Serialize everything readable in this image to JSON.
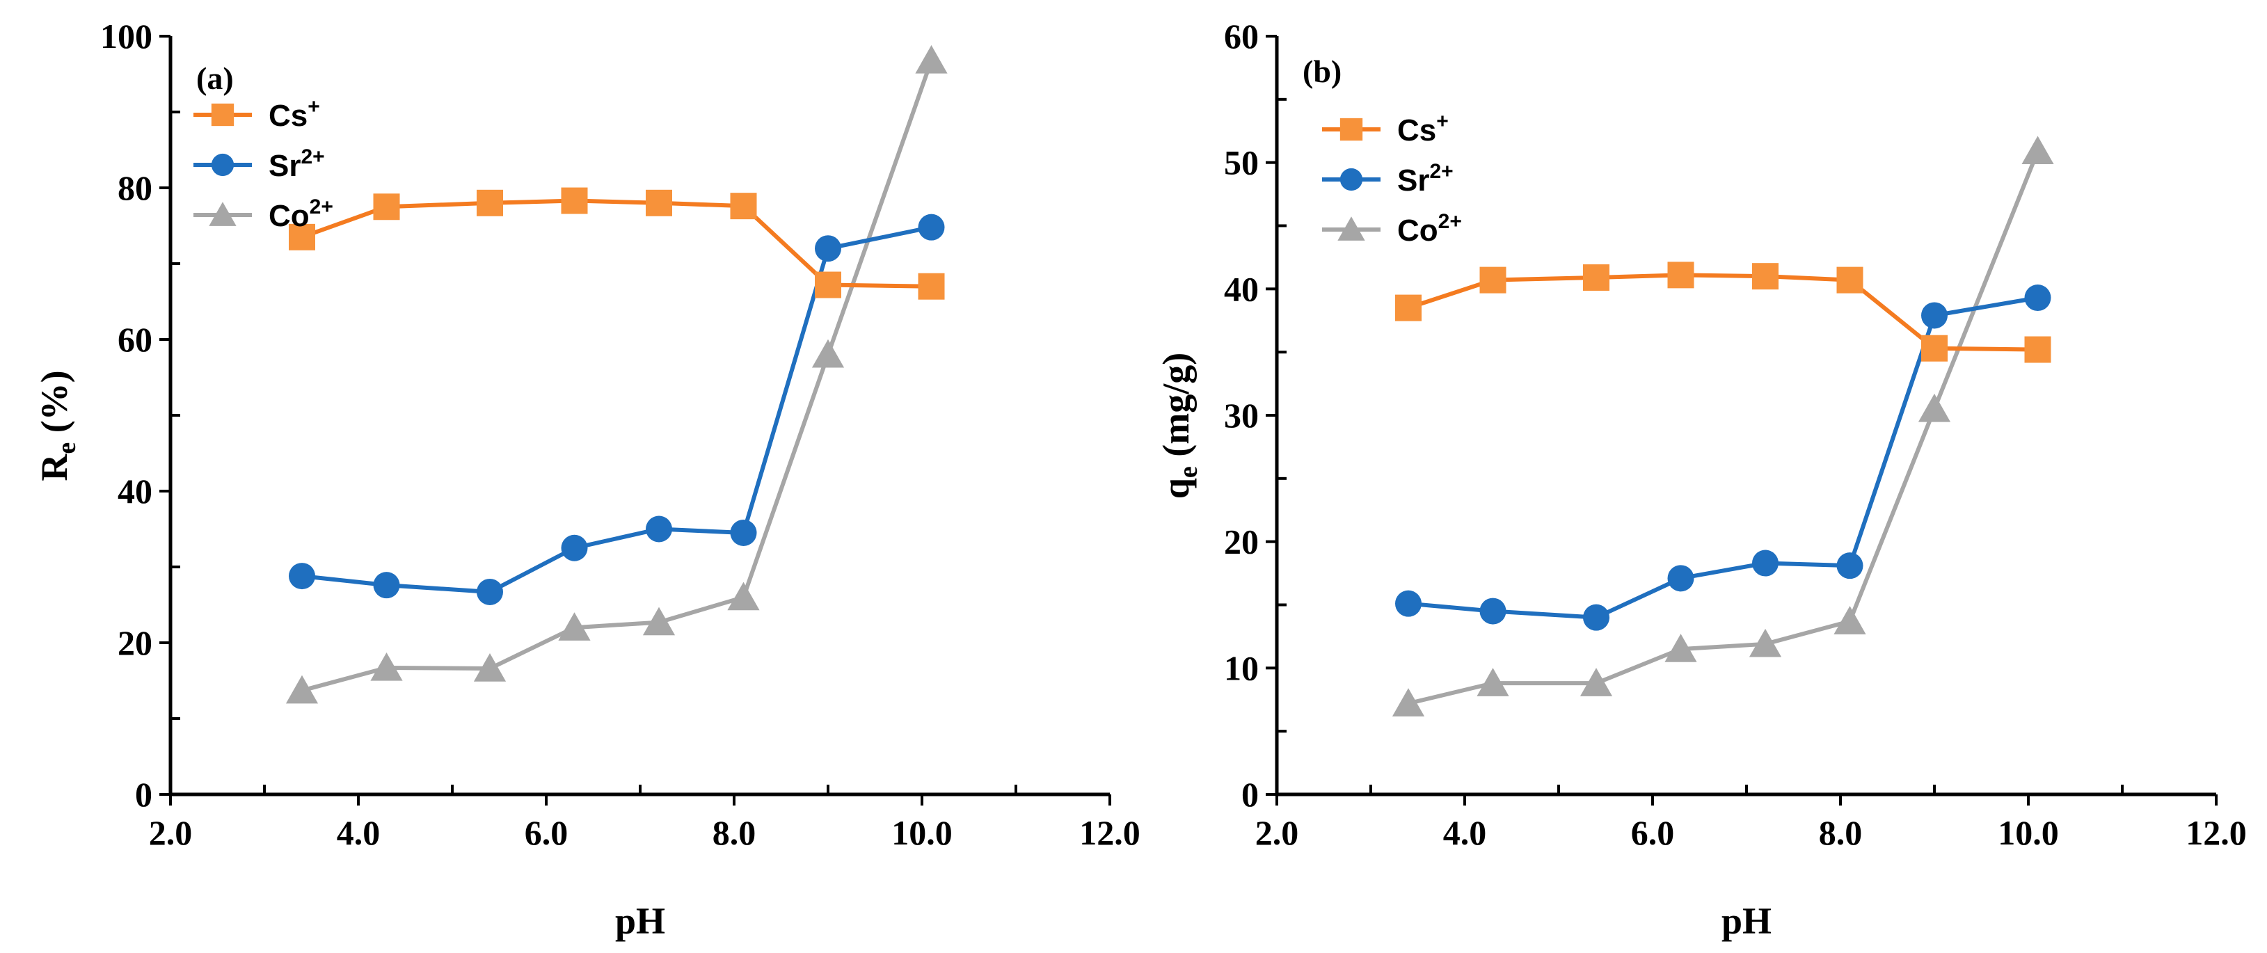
{
  "chart_data": [
    {
      "type": "line",
      "panel_label": "(a)",
      "ylabel": {
        "main": "R",
        "sub": "e",
        "rest": " (%)"
      },
      "xlabel": "pH",
      "xlim": [
        2.0,
        12.0
      ],
      "ylim": [
        0,
        100
      ],
      "xticks": [
        "2.0",
        "4.0",
        "6.0",
        "8.0",
        "10.0",
        "12.0"
      ],
      "yticks": [
        "0",
        "20",
        "40",
        "60",
        "80",
        "100"
      ],
      "legend_position": "top-left",
      "series": [
        {
          "name": "Cs",
          "sup": "+",
          "color": "#F47B20",
          "marker_fill": "#F7923A",
          "marker": "square",
          "x": [
            3.4,
            4.3,
            5.4,
            6.3,
            7.2,
            8.1,
            9.0,
            10.1
          ],
          "y": [
            73.5,
            77.5,
            78.0,
            78.3,
            78.0,
            77.6,
            67.2,
            67.0
          ]
        },
        {
          "name": "Sr",
          "sup": "2+",
          "color": "#1F6FBF",
          "marker_fill": "#1F6FBF",
          "marker": "circle",
          "x": [
            3.4,
            4.3,
            5.4,
            6.3,
            7.2,
            8.1,
            9.0,
            10.1
          ],
          "y": [
            28.8,
            27.6,
            26.7,
            32.5,
            35.0,
            34.5,
            72.0,
            74.8
          ]
        },
        {
          "name": "Co",
          "sup": "2+",
          "color": "#A6A6A6",
          "marker_fill": "#A6A6A6",
          "marker": "triangle",
          "x": [
            3.4,
            4.3,
            5.4,
            6.3,
            7.2,
            8.1,
            9.0,
            10.1
          ],
          "y": [
            13.7,
            16.7,
            16.6,
            22.0,
            22.7,
            26.0,
            58.0,
            96.8
          ]
        }
      ]
    },
    {
      "type": "line",
      "panel_label": "(b)",
      "ylabel": {
        "main": "q",
        "sub": "e",
        "rest": " (mg/g)"
      },
      "xlabel": "pH",
      "xlim": [
        2.0,
        12.0
      ],
      "ylim": [
        0,
        60
      ],
      "xticks": [
        "2.0",
        "4.0",
        "6.0",
        "8.0",
        "10.0",
        "12.0"
      ],
      "yticks": [
        "0",
        "10",
        "20",
        "30",
        "40",
        "50",
        "60"
      ],
      "legend_position": "top-left",
      "series": [
        {
          "name": "Cs",
          "sup": "+",
          "color": "#F47B20",
          "marker_fill": "#F7923A",
          "marker": "square",
          "x": [
            3.4,
            4.3,
            5.4,
            6.3,
            7.2,
            8.1,
            9.0,
            10.1
          ],
          "y": [
            38.5,
            40.7,
            40.9,
            41.1,
            41.0,
            40.7,
            35.3,
            35.2
          ]
        },
        {
          "name": "Sr",
          "sup": "2+",
          "color": "#1F6FBF",
          "marker_fill": "#1F6FBF",
          "marker": "circle",
          "x": [
            3.4,
            4.3,
            5.4,
            6.3,
            7.2,
            8.1,
            9.0,
            10.1
          ],
          "y": [
            15.1,
            14.5,
            14.0,
            17.1,
            18.3,
            18.1,
            37.9,
            39.3
          ]
        },
        {
          "name": "Co",
          "sup": "2+",
          "color": "#A6A6A6",
          "marker_fill": "#A6A6A6",
          "marker": "triangle",
          "x": [
            3.4,
            4.3,
            5.4,
            6.3,
            7.2,
            8.1,
            9.0,
            10.1
          ],
          "y": [
            7.2,
            8.8,
            8.8,
            11.5,
            11.9,
            13.7,
            30.5,
            50.9
          ]
        }
      ]
    }
  ]
}
